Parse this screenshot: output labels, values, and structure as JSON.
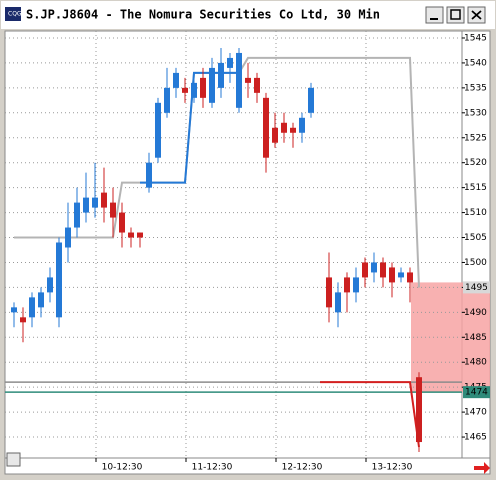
{
  "title": "S.JP.J8604 - The Nomura Securities Co Ltd, 30 Min",
  "chart_data": {
    "type": "candlestick",
    "categories": [
      null,
      null,
      null,
      null,
      null,
      null,
      null,
      null,
      null,
      null,
      null,
      null,
      "10-12:30",
      null,
      null,
      null,
      null,
      null,
      null,
      null,
      null,
      null,
      "11-12:30",
      null,
      null,
      null,
      null,
      null,
      null,
      null,
      null,
      null,
      "12-12:30",
      null,
      null,
      null,
      null,
      null,
      null,
      null,
      null,
      null,
      "13-12:30",
      null,
      null,
      null
    ],
    "open": [
      1490,
      1489,
      1489,
      1491,
      1494,
      1489,
      1503,
      1507,
      1510,
      1511,
      1514,
      1512,
      1510,
      1506,
      1506,
      1515,
      1521,
      1530,
      1535,
      1535,
      1533,
      1537,
      1532,
      1535,
      1539,
      1531,
      1537,
      1537,
      1533,
      1527,
      1528,
      1527,
      1526,
      1530,
      null,
      1497,
      1490,
      1497,
      1494,
      1500,
      1498,
      1500,
      1499,
      1497,
      1498,
      1477
    ],
    "high": [
      1492,
      1491,
      1494,
      1495,
      1499,
      1505,
      1512,
      1515,
      1518,
      1520,
      1519,
      1515,
      1512,
      1507,
      1506,
      1522,
      1533,
      1539,
      1539,
      1537,
      1538,
      1539,
      1541,
      1543,
      1542,
      1543,
      1540,
      1538,
      1534,
      1530,
      1530,
      1528,
      1530,
      1536,
      null,
      1502,
      1496,
      1498,
      1499,
      1501,
      1502,
      1501,
      1500,
      1499,
      1499,
      1478
    ],
    "low": [
      1487,
      1484,
      1487,
      1489,
      1492,
      1487,
      1500,
      1505,
      1508,
      1509,
      1508,
      1505,
      1503,
      1503,
      1503,
      1514,
      1520,
      1529,
      1533,
      1532,
      1532,
      1531,
      1531,
      1533,
      1536,
      1530,
      1533,
      1532,
      1518,
      1523,
      1524,
      1523,
      1524,
      1529,
      null,
      1488,
      1487,
      1490,
      1492,
      1495,
      1496,
      1495,
      1493,
      1496,
      1492,
      1462
    ],
    "close": [
      1491,
      1488,
      1493,
      1494,
      1497,
      1504,
      1507,
      1512,
      1513,
      1513,
      1511,
      1509,
      1506,
      1505,
      1505,
      1520,
      1532,
      1535,
      1538,
      1534,
      1536,
      1533,
      1539,
      1540,
      1541,
      1542,
      1536,
      1534,
      1521,
      1524,
      1526,
      1526,
      1529,
      1535,
      null,
      1491,
      1494,
      1494,
      1497,
      1497,
      1500,
      1497,
      1496,
      1498,
      1496,
      1464
    ],
    "up_color": "#2479d6",
    "down_color": "#cc2020",
    "lines": [
      {
        "color": "#b4b4b4",
        "values": [
          1505,
          1505,
          1505,
          1505,
          1505,
          1505,
          1505,
          1505,
          1505,
          1505,
          1505,
          1505,
          1516,
          1516,
          1516,
          1516,
          1516,
          1516,
          1516,
          1516,
          1538,
          1538,
          1538,
          1538,
          1538,
          1538,
          1541,
          1541,
          1541,
          1541,
          1541,
          1541,
          1541,
          1541,
          1541,
          1541,
          1541,
          1541,
          1541,
          1541,
          1541,
          1541,
          1541,
          1541,
          1541,
          1495
        ]
      },
      {
        "color": "#2479d6",
        "values": [
          null,
          null,
          null,
          null,
          null,
          null,
          null,
          null,
          null,
          null,
          null,
          null,
          null,
          null,
          1516,
          1516,
          1516,
          1516,
          1516,
          1516,
          1538,
          1538,
          1538,
          1538,
          1538,
          1538,
          null,
          null,
          null,
          null,
          null,
          null,
          null,
          null,
          null,
          null,
          null,
          null,
          null,
          null,
          null,
          null,
          null,
          null,
          null,
          null
        ]
      },
      {
        "color": "#d42020",
        "values": [
          null,
          null,
          null,
          null,
          null,
          null,
          null,
          null,
          null,
          null,
          null,
          null,
          null,
          null,
          null,
          null,
          null,
          null,
          null,
          null,
          null,
          null,
          null,
          null,
          null,
          null,
          null,
          null,
          null,
          null,
          null,
          null,
          null,
          null,
          1476,
          1476,
          1476,
          1476,
          1476,
          1476,
          1476,
          1476,
          1476,
          1476,
          1476,
          1463
        ]
      }
    ],
    "levels": [
      {
        "value": 1476,
        "color": "#8c8c8c"
      },
      {
        "value": 1474,
        "color": "#2e8b7a"
      }
    ],
    "axis_markers": [
      {
        "value": 1495,
        "color": "#d8d8d8"
      },
      {
        "value": 1474,
        "color": "#2e8b7a"
      }
    ],
    "band": {
      "from": 1474,
      "to": 1496,
      "color": "#f7a3a3"
    },
    "ylim": [
      1460.8,
      1546.4
    ],
    "yticks": [
      1465,
      1470,
      1475,
      1480,
      1485,
      1490,
      1495,
      1500,
      1505,
      1510,
      1515,
      1520,
      1525,
      1530,
      1535,
      1540,
      1545
    ],
    "grid": true
  }
}
